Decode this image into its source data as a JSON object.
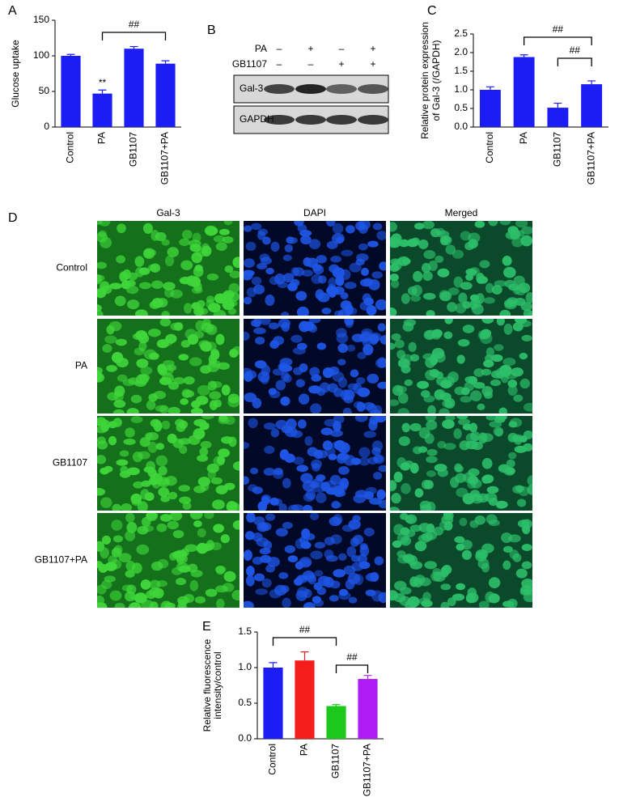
{
  "panel_labels": [
    "A",
    "B",
    "C",
    "D",
    "E"
  ],
  "chart_data": [
    {
      "type": "bar",
      "y_label": [
        "Glucose uptake"
      ],
      "categories": [
        "Control",
        "PA",
        "GB1107",
        "GB1107+PA"
      ],
      "values": [
        100,
        47,
        110,
        89
      ],
      "errors": [
        2,
        5,
        3,
        4
      ],
      "color": "#1c1cf5",
      "ylim": [
        0,
        150
      ],
      "yticks": [
        0,
        50,
        100,
        150
      ],
      "annotations": [
        "**",
        "##"
      ]
    },
    {
      "type": "bar",
      "y_label": [
        "Relative protein expression",
        "of Gal-3 (/GAPDH)"
      ],
      "categories": [
        "Control",
        "PA",
        "GB1107",
        "GB1107+PA"
      ],
      "values": [
        1.0,
        1.88,
        0.52,
        1.15
      ],
      "errors": [
        0.08,
        0.06,
        0.12,
        0.09
      ],
      "color": "#1c1cf5",
      "ylim": [
        0,
        2.5
      ],
      "yticks": [
        {
          "value": 0,
          "label": "0.0"
        },
        {
          "value": 0.5,
          "label": "0.5"
        },
        {
          "value": 1,
          "label": "1.0"
        },
        {
          "value": 1.5,
          "label": "1.5"
        },
        {
          "value": 2,
          "label": "2.0"
        },
        {
          "value": 2.5,
          "label": "2.5"
        }
      ],
      "annotations": [
        "##",
        "##"
      ]
    },
    {
      "type": "bar",
      "y_label": [
        "Relative fluorescence",
        "intensity/control"
      ],
      "categories": [
        "Control",
        "PA",
        "GB1107",
        "GB1107+PA"
      ],
      "values": [
        1.0,
        1.1,
        0.46,
        0.84
      ],
      "errors": [
        0.07,
        0.12,
        0.02,
        0.05
      ],
      "colors": [
        "#1c1cf5",
        "#f51c1c",
        "#1cc81c",
        "#b01cf5"
      ],
      "ylim": [
        0,
        1.5
      ],
      "yticks": [
        {
          "value": 0,
          "label": "0.0"
        },
        {
          "value": 0.5,
          "label": "0.5"
        },
        {
          "value": 1,
          "label": "1.0"
        },
        {
          "value": 1.5,
          "label": "1.5"
        }
      ],
      "annotations": [
        "##",
        "##"
      ]
    }
  ],
  "blot": {
    "rows": [
      {
        "label": "PA",
        "signs": [
          "–",
          "+",
          "–",
          "+"
        ]
      },
      {
        "label": "GB1107",
        "signs": [
          "–",
          "–",
          "+",
          "+"
        ]
      }
    ],
    "bands": [
      "Gal-3",
      "GAPDH"
    ]
  },
  "microscopy": {
    "columns": [
      "Gal-3",
      "DAPI",
      "Merged"
    ],
    "rows": [
      "Control",
      "PA",
      "GB1107",
      "GB1107+PA"
    ]
  }
}
